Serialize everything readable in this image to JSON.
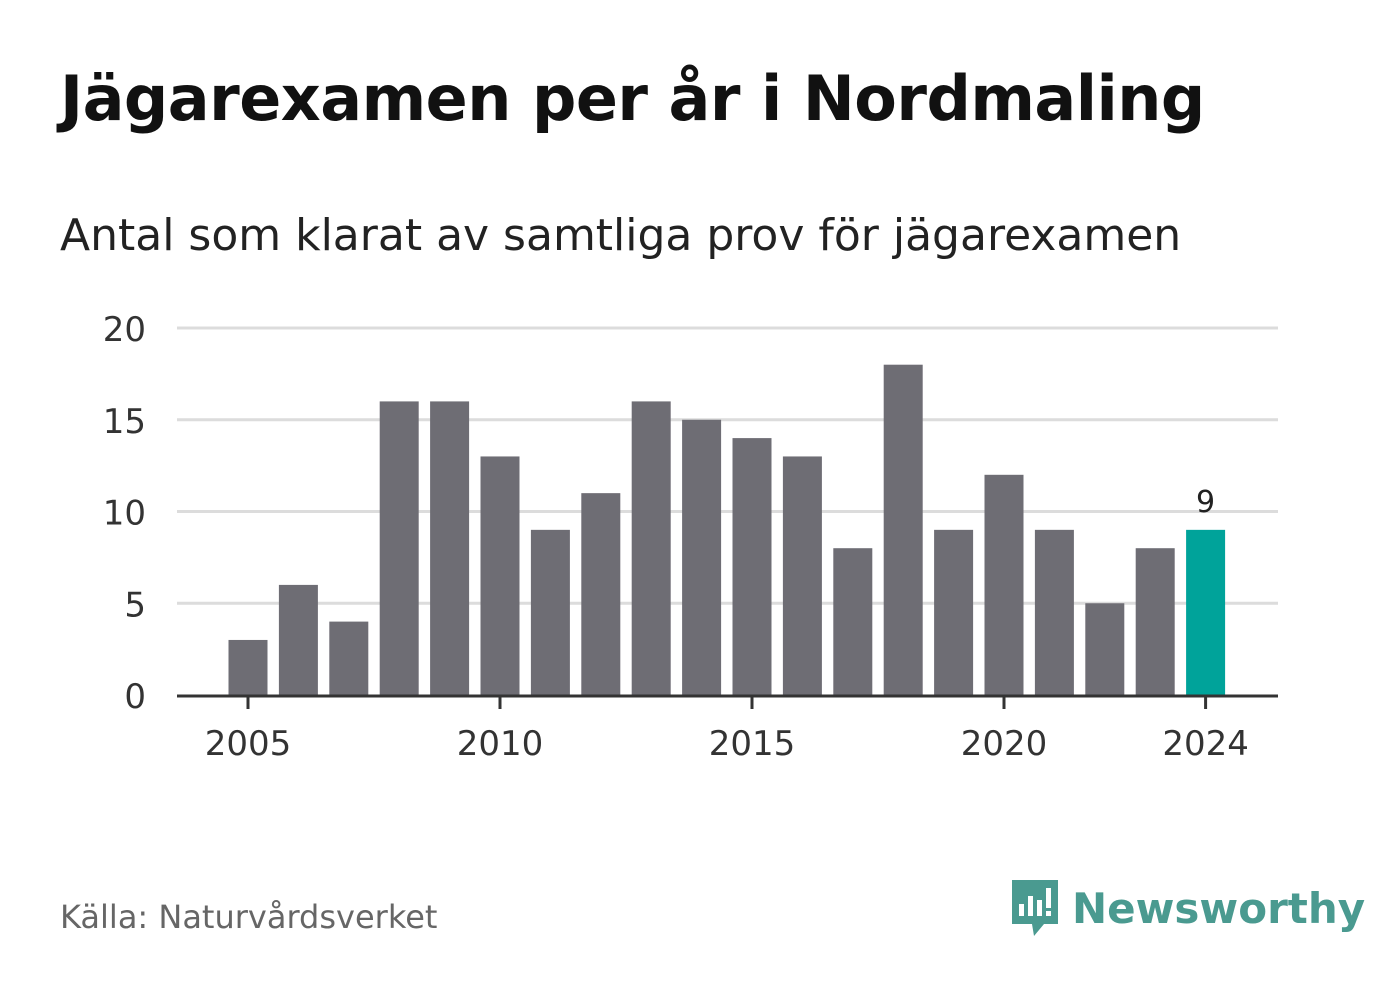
{
  "title": "Jägarexamen per år i Nordmaling",
  "subtitle": "Antal som klarat av samtliga prov för jägarexamen",
  "source": "Källa: Naturvårdsverket",
  "brand": {
    "name": "Newsworthy",
    "icon": "newsworthy-logo-icon",
    "color": "#4a9a90"
  },
  "colors": {
    "bar": "#6e6d74",
    "highlight": "#00a39a",
    "grid": "#dcdcdc",
    "axis": "#333333"
  },
  "chart_data": {
    "type": "bar",
    "title": "Jägarexamen per år i Nordmaling",
    "subtitle": "Antal som klarat av samtliga prov för jägarexamen",
    "xlabel": "",
    "ylabel": "",
    "categories": [
      2005,
      2006,
      2007,
      2008,
      2009,
      2010,
      2011,
      2012,
      2013,
      2014,
      2015,
      2016,
      2017,
      2018,
      2019,
      2020,
      2021,
      2022,
      2023,
      2024
    ],
    "values": [
      3,
      6,
      4,
      16,
      16,
      13,
      9,
      11,
      16,
      15,
      14,
      13,
      8,
      18,
      9,
      12,
      9,
      5,
      8,
      9
    ],
    "highlight": {
      "category": 2024,
      "value": 9,
      "label": "9"
    },
    "ylim": [
      0,
      20
    ],
    "yticks": [
      "0",
      "5",
      "10",
      "15",
      "20"
    ],
    "xticks": [
      "2005",
      "2010",
      "2015",
      "2020",
      "2024"
    ],
    "grid": true,
    "legend": "none"
  }
}
